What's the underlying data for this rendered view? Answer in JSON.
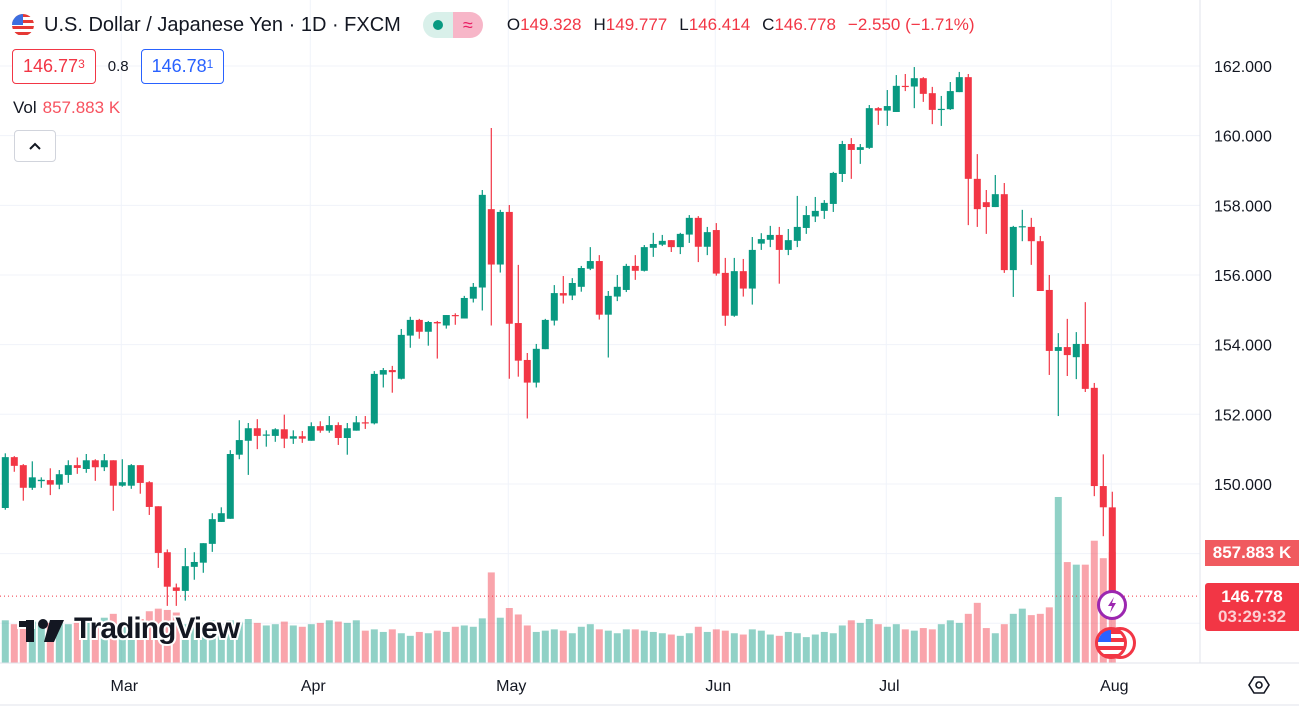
{
  "header": {
    "title": "U.S. Dollar / Japanese Yen · 1D · FXCM",
    "market_open_icon": "green-dot-icon",
    "delayed_icon_glyph": "≈",
    "ohlc": [
      {
        "key": "O",
        "value": "149.328"
      },
      {
        "key": "H",
        "value": "149.777"
      },
      {
        "key": "L",
        "value": "146.414"
      },
      {
        "key": "C",
        "value": "146.778"
      }
    ],
    "change": "−2.550 (−1.71%)"
  },
  "quote": {
    "sell_main": "146.77",
    "sell_sup": "3",
    "spread": "0.8",
    "buy_main": "146.78",
    "buy_sup": "1"
  },
  "volume_legend": {
    "label": "Vol",
    "value": "857.883 K"
  },
  "badges": {
    "volume": "857.883 K",
    "price": "146.778",
    "countdown": "03:29:32"
  },
  "logo": {
    "text": "TradingView"
  },
  "colors": {
    "up": "#089981",
    "down": "#f23645",
    "grid": "#f0f3fa",
    "event": "#9c27b0"
  },
  "chart_data": {
    "type": "candlestick",
    "title": "U.S. Dollar / Japanese Yen · 1D · FXCM",
    "ylim": [
      146,
      162
    ],
    "grid": true,
    "y_ticks": [
      "150.000",
      "152.000",
      "154.000",
      "156.000",
      "158.000",
      "160.000",
      "162.000"
    ],
    "y_tick_values": [
      150,
      152,
      154,
      156,
      158,
      160,
      162
    ],
    "x_labels": [
      {
        "label": "Mar",
        "bar": 13
      },
      {
        "label": "Apr",
        "bar": 34
      },
      {
        "label": "May",
        "bar": 56
      },
      {
        "label": "Jun",
        "bar": 79
      },
      {
        "label": "Jul",
        "bar": 98
      },
      {
        "label": "Aug",
        "bar": 123
      }
    ],
    "last_price": 146.778,
    "ohlc": [
      [
        149.31,
        150.88,
        149.26,
        150.77
      ],
      [
        150.77,
        150.8,
        150.35,
        150.52
      ],
      [
        150.54,
        150.57,
        149.52,
        149.89
      ],
      [
        149.89,
        150.65,
        149.83,
        150.19
      ],
      [
        150.08,
        150.19,
        149.89,
        150.12
      ],
      [
        150.11,
        150.45,
        149.68,
        149.98
      ],
      [
        149.98,
        150.4,
        149.85,
        150.28
      ],
      [
        150.26,
        150.68,
        150.03,
        150.54
      ],
      [
        150.54,
        150.76,
        150.29,
        150.46
      ],
      [
        150.43,
        150.86,
        150.32,
        150.68
      ],
      [
        150.68,
        150.71,
        150.09,
        150.48
      ],
      [
        150.48,
        150.86,
        150.37,
        150.68
      ],
      [
        150.68,
        150.68,
        149.23,
        149.95
      ],
      [
        149.95,
        150.71,
        149.92,
        150.05
      ],
      [
        149.95,
        150.57,
        149.86,
        150.54
      ],
      [
        150.54,
        150.54,
        149.72,
        150.03
      ],
      [
        150.05,
        150.08,
        149.11,
        149.34
      ],
      [
        149.36,
        149.36,
        147.59,
        148.02
      ],
      [
        148.04,
        148.12,
        146.5,
        147.05
      ],
      [
        147.03,
        147.14,
        146.5,
        146.93
      ],
      [
        146.93,
        148.16,
        146.65,
        147.64
      ],
      [
        147.62,
        148.04,
        147.25,
        147.76
      ],
      [
        147.74,
        148.3,
        147.45,
        148.3
      ],
      [
        148.28,
        149.16,
        148.05,
        148.99
      ],
      [
        148.91,
        149.33,
        148.91,
        149.16
      ],
      [
        149.0,
        150.97,
        149.0,
        150.86
      ],
      [
        150.84,
        151.83,
        150.71,
        151.26
      ],
      [
        151.24,
        151.75,
        150.26,
        151.6
      ],
      [
        151.6,
        151.86,
        151.0,
        151.38
      ],
      [
        151.4,
        151.54,
        151.07,
        151.42
      ],
      [
        151.38,
        151.6,
        151.21,
        151.57
      ],
      [
        151.57,
        151.99,
        151.03,
        151.3
      ],
      [
        151.3,
        151.54,
        151.15,
        151.37
      ],
      [
        151.37,
        151.52,
        151.18,
        151.3
      ],
      [
        151.24,
        151.77,
        151.24,
        151.66
      ],
      [
        151.66,
        151.8,
        151.47,
        151.53
      ],
      [
        151.53,
        151.95,
        151.47,
        151.69
      ],
      [
        151.69,
        151.77,
        151.12,
        151.32
      ],
      [
        151.32,
        151.75,
        150.84,
        151.6
      ],
      [
        151.53,
        151.95,
        151.53,
        151.77
      ],
      [
        151.77,
        151.95,
        151.58,
        151.75
      ],
      [
        151.74,
        153.24,
        151.71,
        153.16
      ],
      [
        153.14,
        153.33,
        152.77,
        153.27
      ],
      [
        153.27,
        153.39,
        152.62,
        153.21
      ],
      [
        153.02,
        154.45,
        153.0,
        154.28
      ],
      [
        154.26,
        154.8,
        153.91,
        154.71
      ],
      [
        154.71,
        154.74,
        154.17,
        154.37
      ],
      [
        154.37,
        154.68,
        153.97,
        154.65
      ],
      [
        154.65,
        154.68,
        153.6,
        154.61
      ],
      [
        154.55,
        154.85,
        154.46,
        154.85
      ],
      [
        154.85,
        154.9,
        154.57,
        154.83
      ],
      [
        154.75,
        155.4,
        154.75,
        155.34
      ],
      [
        155.32,
        155.77,
        155.21,
        155.66
      ],
      [
        155.64,
        158.44,
        154.98,
        158.3
      ],
      [
        157.89,
        160.22,
        154.55,
        156.3
      ],
      [
        156.3,
        157.87,
        156.07,
        157.81
      ],
      [
        157.81,
        158.01,
        153.02,
        154.6
      ],
      [
        154.62,
        156.29,
        153.08,
        153.54
      ],
      [
        153.56,
        153.76,
        151.88,
        152.91
      ],
      [
        152.91,
        154.02,
        152.77,
        153.88
      ],
      [
        153.87,
        154.74,
        153.87,
        154.71
      ],
      [
        154.69,
        155.71,
        154.55,
        155.48
      ],
      [
        155.48,
        155.97,
        155.18,
        155.41
      ],
      [
        155.41,
        155.91,
        155.28,
        155.77
      ],
      [
        155.66,
        156.26,
        155.52,
        156.2
      ],
      [
        156.18,
        156.8,
        156.14,
        156.4
      ],
      [
        156.4,
        156.57,
        154.72,
        154.86
      ],
      [
        154.86,
        155.54,
        153.63,
        155.4
      ],
      [
        155.38,
        156.0,
        155.25,
        155.66
      ],
      [
        155.57,
        156.32,
        155.51,
        156.26
      ],
      [
        156.26,
        156.57,
        155.86,
        156.12
      ],
      [
        156.12,
        156.86,
        156.1,
        156.8
      ],
      [
        156.78,
        157.21,
        156.52,
        156.89
      ],
      [
        156.87,
        157.15,
        156.83,
        156.98
      ],
      [
        157.0,
        157.0,
        156.66,
        156.8
      ],
      [
        156.8,
        157.21,
        156.6,
        157.18
      ],
      [
        157.16,
        157.72,
        156.92,
        157.64
      ],
      [
        157.64,
        157.69,
        156.37,
        156.81
      ],
      [
        156.81,
        157.38,
        156.57,
        157.23
      ],
      [
        157.29,
        157.49,
        155.98,
        156.04
      ],
      [
        156.06,
        156.49,
        154.54,
        154.83
      ],
      [
        154.83,
        156.49,
        154.8,
        156.11
      ],
      [
        156.11,
        156.46,
        155.38,
        155.61
      ],
      [
        155.61,
        157.09,
        155.15,
        156.72
      ],
      [
        156.9,
        157.2,
        156.72,
        157.03
      ],
      [
        157.01,
        157.41,
        156.8,
        157.15
      ],
      [
        157.15,
        157.38,
        155.75,
        156.72
      ],
      [
        156.72,
        157.32,
        156.57,
        157.0
      ],
      [
        156.98,
        158.27,
        156.8,
        157.38
      ],
      [
        157.35,
        157.98,
        157.18,
        157.72
      ],
      [
        157.68,
        158.24,
        157.52,
        157.84
      ],
      [
        157.84,
        158.15,
        157.61,
        158.07
      ],
      [
        158.04,
        158.96,
        157.81,
        158.93
      ],
      [
        158.9,
        159.85,
        158.67,
        159.76
      ],
      [
        159.76,
        159.93,
        158.76,
        159.59
      ],
      [
        159.59,
        159.76,
        159.19,
        159.67
      ],
      [
        159.65,
        160.88,
        159.62,
        160.79
      ],
      [
        160.79,
        160.82,
        160.31,
        160.72
      ],
      [
        160.72,
        161.31,
        160.28,
        160.85
      ],
      [
        160.68,
        161.74,
        160.68,
        161.43
      ],
      [
        161.43,
        161.77,
        161.28,
        161.41
      ],
      [
        161.41,
        161.97,
        160.79,
        161.65
      ],
      [
        161.65,
        161.68,
        160.97,
        161.2
      ],
      [
        161.22,
        161.4,
        160.33,
        160.74
      ],
      [
        160.74,
        161.14,
        160.28,
        160.77
      ],
      [
        160.76,
        161.54,
        160.74,
        161.28
      ],
      [
        161.25,
        161.83,
        161.25,
        161.68
      ],
      [
        161.68,
        161.77,
        157.43,
        158.76
      ],
      [
        158.76,
        159.47,
        157.38,
        157.89
      ],
      [
        158.09,
        158.44,
        157.18,
        157.95
      ],
      [
        157.95,
        158.87,
        157.95,
        158.32
      ],
      [
        158.32,
        158.64,
        156.06,
        156.14
      ],
      [
        156.14,
        157.41,
        155.37,
        157.38
      ],
      [
        157.38,
        157.87,
        156.97,
        157.4
      ],
      [
        157.38,
        157.64,
        156.29,
        156.97
      ],
      [
        156.97,
        157.12,
        155.54,
        155.54
      ],
      [
        155.57,
        156.0,
        153.13,
        153.82
      ],
      [
        153.82,
        154.33,
        151.95,
        153.93
      ],
      [
        153.93,
        154.74,
        153.1,
        153.7
      ],
      [
        153.64,
        154.36,
        153.01,
        154.02
      ],
      [
        154.02,
        155.22,
        152.64,
        152.73
      ],
      [
        152.76,
        152.9,
        149.65,
        149.94
      ],
      [
        149.94,
        150.85,
        148.5,
        149.33
      ],
      [
        149.328,
        149.777,
        146.414,
        146.778
      ]
    ],
    "volume_k": [
      330,
      300,
      340,
      320,
      290,
      310,
      330,
      300,
      340,
      310,
      300,
      350,
      380,
      320,
      350,
      340,
      400,
      420,
      410,
      390,
      300,
      280,
      310,
      330,
      300,
      330,
      320,
      340,
      310,
      290,
      300,
      320,
      290,
      280,
      300,
      310,
      330,
      320,
      310,
      330,
      250,
      260,
      240,
      260,
      230,
      210,
      240,
      230,
      250,
      240,
      280,
      290,
      280,
      345,
      700,
      350,
      425,
      375,
      290,
      240,
      250,
      260,
      250,
      230,
      280,
      300,
      260,
      250,
      230,
      260,
      260,
      250,
      240,
      230,
      220,
      210,
      230,
      280,
      240,
      260,
      250,
      230,
      220,
      260,
      250,
      220,
      210,
      240,
      230,
      200,
      220,
      240,
      230,
      290,
      330,
      310,
      340,
      300,
      280,
      300,
      260,
      250,
      270,
      260,
      300,
      330,
      310,
      380,
      465,
      270,
      230,
      300,
      380,
      420,
      370,
      380,
      430,
      1283,
      780,
      760,
      760,
      945,
      810,
      858
    ]
  }
}
